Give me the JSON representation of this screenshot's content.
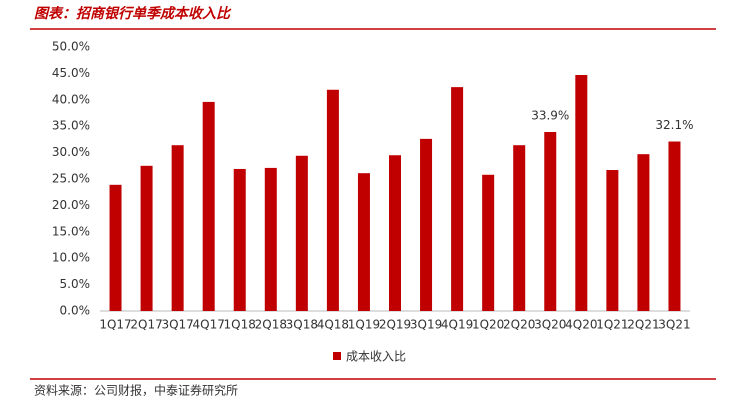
{
  "header": {
    "title": "图表：招商银行单季成本收入比"
  },
  "chart_data": {
    "type": "bar",
    "categories": [
      "1Q17",
      "2Q17",
      "3Q17",
      "4Q17",
      "1Q18",
      "2Q18",
      "3Q18",
      "4Q18",
      "1Q19",
      "2Q19",
      "3Q19",
      "4Q19",
      "1Q20",
      "2Q20",
      "3Q20",
      "4Q20",
      "1Q21",
      "2Q21",
      "3Q21"
    ],
    "series": [
      {
        "name": "成本收入比",
        "color": "#c00000",
        "values": [
          23.9,
          27.5,
          31.4,
          39.6,
          26.9,
          27.1,
          29.4,
          41.9,
          26.1,
          29.5,
          32.6,
          42.4,
          25.8,
          31.4,
          33.9,
          44.7,
          26.7,
          29.7,
          32.1
        ],
        "value_labels": [
          null,
          null,
          null,
          null,
          null,
          null,
          null,
          null,
          null,
          null,
          null,
          null,
          null,
          null,
          "33.9%",
          null,
          null,
          null,
          "32.1%"
        ]
      }
    ],
    "ylim": [
      0,
      50
    ],
    "yticks": [
      {
        "value": 0,
        "label": "0.0%"
      },
      {
        "value": 5,
        "label": "5.0%"
      },
      {
        "value": 10,
        "label": "10.0%"
      },
      {
        "value": 15,
        "label": "15.0%"
      },
      {
        "value": 20,
        "label": "20.0%"
      },
      {
        "value": 25,
        "label": "25.0%"
      },
      {
        "value": 30,
        "label": "30.0%"
      },
      {
        "value": 35,
        "label": "35.0%"
      },
      {
        "value": 40,
        "label": "40.0%"
      },
      {
        "value": 45,
        "label": "45.0%"
      },
      {
        "value": 50,
        "label": "50.0%"
      }
    ],
    "legend": "bottom"
  },
  "footer": {
    "source": "资料来源：公司财报，中泰证券研究所"
  }
}
